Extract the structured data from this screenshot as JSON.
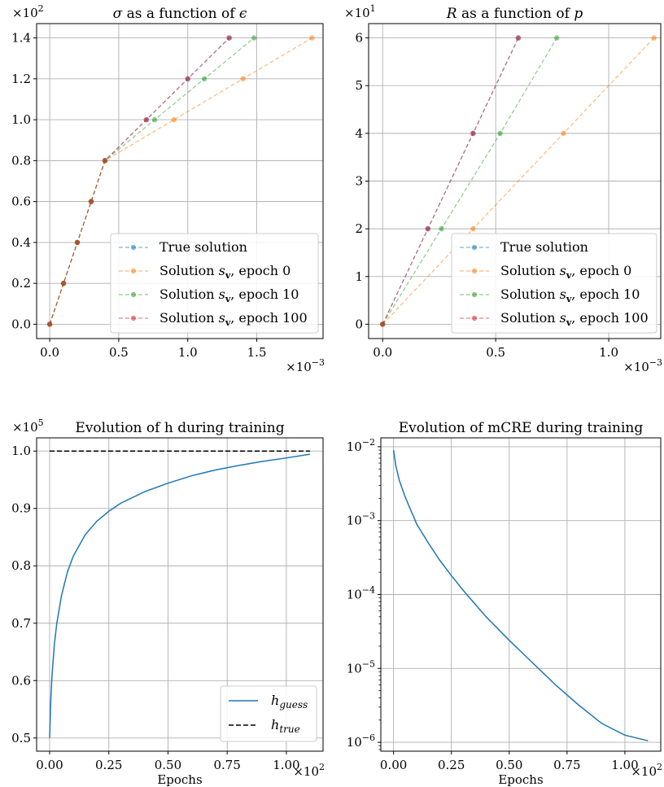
{
  "chart_data": [
    {
      "type": "line",
      "title_parts": [
        {
          "t": "σ",
          "italic": true
        },
        {
          "t": " as a function of ",
          "italic": false
        },
        {
          "t": "ϵ",
          "italic": true
        }
      ],
      "xlabel": "",
      "ylabel": "",
      "x_multiplier": "×10",
      "x_multiplier_exp": "−3",
      "y_multiplier": "×10",
      "y_multiplier_exp": "2",
      "xlim": [
        -0.095,
        1.98
      ],
      "ylim": [
        -0.07,
        1.47
      ],
      "xticks": [
        0.0,
        0.5,
        1.0,
        1.5
      ],
      "xtick_labels": [
        "0.0",
        "0.5",
        "1.0",
        "1.5"
      ],
      "yticks": [
        0.0,
        0.2,
        0.4,
        0.6,
        0.8,
        1.0,
        1.2,
        1.4
      ],
      "ytick_labels": [
        "0.0",
        "0.2",
        "0.4",
        "0.6",
        "0.8",
        "1.0",
        "1.2",
        "1.4"
      ],
      "grid": true,
      "legend_position": "lower-right",
      "series": [
        {
          "name": "True solution",
          "color": "#1f77b4",
          "dash": true,
          "markers": true,
          "x": [
            0,
            0.1,
            0.2,
            0.3,
            0.4,
            0.7,
            1.0,
            1.3
          ],
          "y": [
            0,
            0.2,
            0.4,
            0.6,
            0.8,
            1.0,
            1.2,
            1.4
          ]
        },
        {
          "name": "Solution s_v, epoch 0",
          "color": "#ff7f0e",
          "dash": true,
          "markers": true,
          "x": [
            0,
            0.1,
            0.2,
            0.3,
            0.4,
            0.9,
            1.4,
            1.9
          ],
          "y": [
            0,
            0.2,
            0.4,
            0.6,
            0.8,
            1.0,
            1.2,
            1.4
          ]
        },
        {
          "name": "Solution s_v, epoch 10",
          "color": "#2ca02c",
          "dash": true,
          "markers": true,
          "x": [
            0,
            0.1,
            0.2,
            0.3,
            0.4,
            0.76,
            1.12,
            1.48
          ],
          "y": [
            0,
            0.2,
            0.4,
            0.6,
            0.8,
            1.0,
            1.2,
            1.4
          ]
        },
        {
          "name": "Solution s_v, epoch 100",
          "color": "#d62728",
          "dash": true,
          "markers": true,
          "x": [
            0,
            0.1,
            0.2,
            0.3,
            0.4,
            0.7,
            1.0,
            1.3
          ],
          "y": [
            0,
            0.2,
            0.4,
            0.6,
            0.8,
            1.0,
            1.2,
            1.4
          ]
        }
      ]
    },
    {
      "type": "line",
      "title_parts": [
        {
          "t": "R",
          "italic": true
        },
        {
          "t": " as a function of ",
          "italic": false
        },
        {
          "t": "p",
          "italic": true
        }
      ],
      "xlabel": "",
      "ylabel": "",
      "x_multiplier": "×10",
      "x_multiplier_exp": "−3",
      "y_multiplier": "×10",
      "y_multiplier_exp": "1",
      "xlim": [
        -0.062,
        1.23
      ],
      "ylim": [
        -0.3,
        6.3
      ],
      "xticks": [
        0.0,
        0.5,
        1.0
      ],
      "xtick_labels": [
        "0.0",
        "0.5",
        "1.0"
      ],
      "yticks": [
        0,
        1,
        2,
        3,
        4,
        5,
        6
      ],
      "ytick_labels": [
        "0",
        "1",
        "2",
        "3",
        "4",
        "5",
        "6"
      ],
      "grid": true,
      "legend_position": "lower-right",
      "series": [
        {
          "name": "True solution",
          "color": "#1f77b4",
          "dash": true,
          "markers": true,
          "x": [
            0,
            0.2,
            0.4,
            0.6
          ],
          "y": [
            0,
            2,
            4,
            6
          ]
        },
        {
          "name": "Solution s_v, epoch 0",
          "color": "#ff7f0e",
          "dash": true,
          "markers": true,
          "x": [
            0,
            0.4,
            0.8,
            1.2
          ],
          "y": [
            0,
            2,
            4,
            6
          ]
        },
        {
          "name": "Solution s_v, epoch 10",
          "color": "#2ca02c",
          "dash": true,
          "markers": true,
          "x": [
            0,
            0.26,
            0.52,
            0.77
          ],
          "y": [
            0,
            2,
            4,
            6
          ]
        },
        {
          "name": "Solution s_v, epoch 100",
          "color": "#d62728",
          "dash": true,
          "markers": true,
          "x": [
            0,
            0.2,
            0.4,
            0.6
          ],
          "y": [
            0,
            2,
            4,
            6
          ]
        }
      ]
    },
    {
      "type": "line",
      "title_parts": [
        {
          "t": "Evolution of h during training",
          "italic": false
        }
      ],
      "xlabel": "Epochs",
      "ylabel": "",
      "x_multiplier": "×10",
      "x_multiplier_exp": "2",
      "y_multiplier": "×10",
      "y_multiplier_exp": "5",
      "xlim": [
        -0.055,
        1.155
      ],
      "ylim": [
        0.477,
        1.023
      ],
      "xticks": [
        0.0,
        0.25,
        0.5,
        0.75,
        1.0
      ],
      "xtick_labels": [
        "0.00",
        "0.25",
        "0.50",
        "0.75",
        "1.00"
      ],
      "yticks": [
        0.5,
        0.6,
        0.7,
        0.8,
        0.9,
        1.0
      ],
      "ytick_labels": [
        "0.5",
        "0.6",
        "0.7",
        "0.8",
        "0.9",
        "1.0"
      ],
      "grid": true,
      "legend_position": "lower-right",
      "series": [
        {
          "name": "h_guess",
          "color": "#1f77b4",
          "dash": false,
          "markers": false,
          "x": [
            0,
            0.005,
            0.01,
            0.02,
            0.03,
            0.05,
            0.075,
            0.1,
            0.15,
            0.2,
            0.25,
            0.3,
            0.4,
            0.5,
            0.6,
            0.7,
            0.8,
            0.9,
            1.0,
            1.1
          ],
          "y": [
            0.5,
            0.568,
            0.609,
            0.663,
            0.699,
            0.748,
            0.789,
            0.817,
            0.854,
            0.878,
            0.895,
            0.909,
            0.929,
            0.944,
            0.957,
            0.967,
            0.975,
            0.982,
            0.988,
            0.9945
          ]
        },
        {
          "name": "h_true",
          "color": "#000000",
          "dash": true,
          "markers": false,
          "x": [
            0,
            1.1
          ],
          "y": [
            1.0,
            1.0
          ]
        }
      ]
    },
    {
      "type": "line",
      "title_parts": [
        {
          "t": "Evolution of mCRE during training",
          "italic": false
        }
      ],
      "xlabel": "Epochs",
      "ylabel": "",
      "x_multiplier": "×10",
      "x_multiplier_exp": "2",
      "yscale": "log",
      "xlim": [
        -0.055,
        1.155
      ],
      "ylim_log10": [
        -6.12,
        -1.88
      ],
      "xticks": [
        0.0,
        0.25,
        0.5,
        0.75,
        1.0
      ],
      "xtick_labels": [
        "0.00",
        "0.25",
        "0.50",
        "0.75",
        "1.00"
      ],
      "yticks_log10": [
        -6,
        -5,
        -4,
        -3,
        -2
      ],
      "ytick_labels": [
        "10",
        "10",
        "10",
        "10",
        "10"
      ],
      "ytick_exps": [
        "−6",
        "−5",
        "−4",
        "−3",
        "−2"
      ],
      "grid": true,
      "series": [
        {
          "name": "",
          "color": "#1f77b4",
          "dash": false,
          "markers": false,
          "x": [
            0,
            0.01,
            0.025,
            0.05,
            0.1,
            0.15,
            0.2,
            0.25,
            0.3,
            0.4,
            0.5,
            0.6,
            0.7,
            0.8,
            0.9,
            1.0,
            1.1
          ],
          "y": [
            0.009,
            0.0055,
            0.0035,
            0.0021,
            0.0009,
            0.0005,
            0.00029,
            0.00018,
            0.000115,
            5e-05,
            2.4e-05,
            1.2e-05,
            6e-06,
            3.2e-06,
            1.8e-06,
            1.25e-06,
            1.05e-06
          ]
        }
      ]
    }
  ]
}
